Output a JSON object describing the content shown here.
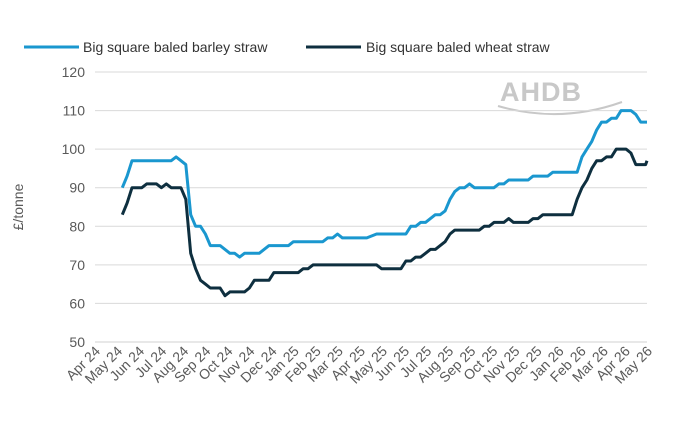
{
  "watermark": "AHDB",
  "colors": {
    "barley": "#1a97cf",
    "wheat": "#0e2f3f",
    "grid": "#d9d9d9",
    "axis": "#d0d0d0"
  },
  "chart_data": {
    "type": "line",
    "title": "",
    "xlabel": "",
    "ylabel": "£/tonne",
    "ylim": [
      50,
      120
    ],
    "yticks": [
      50,
      60,
      70,
      80,
      90,
      100,
      110,
      120
    ],
    "grid": true,
    "legend_position": "top",
    "x_range": [
      "2024-04-01",
      "2026-05-31"
    ],
    "categories": [
      "Apr 24",
      "May 24",
      "Jun 24",
      "Jul 24",
      "Aug 24",
      "Sep 24",
      "Oct 24",
      "Nov 24",
      "Dec 24",
      "Jan 25",
      "Feb 25",
      "Mar 25",
      "Apr 25",
      "May 25",
      "Jun 25",
      "Jul 25",
      "Aug 25",
      "Sep 25",
      "Oct 25",
      "Nov 25",
      "Dec 25",
      "Jan 26",
      "Feb 26",
      "Mar 26",
      "Apr 26",
      "May 26"
    ],
    "series": [
      {
        "name": "Big square baled barley straw",
        "color": "#1a97cf",
        "points": [
          [
            "2024-05-10",
            90
          ],
          [
            "2024-05-17",
            93
          ],
          [
            "2024-05-24",
            97
          ],
          [
            "2024-05-31",
            97
          ],
          [
            "2024-06-14",
            97
          ],
          [
            "2024-06-28",
            97
          ],
          [
            "2024-07-12",
            97
          ],
          [
            "2024-07-19",
            97
          ],
          [
            "2024-07-26",
            98
          ],
          [
            "2024-08-02",
            97
          ],
          [
            "2024-08-09",
            96
          ],
          [
            "2024-08-16",
            83
          ],
          [
            "2024-08-23",
            80
          ],
          [
            "2024-08-30",
            80
          ],
          [
            "2024-09-06",
            78
          ],
          [
            "2024-09-13",
            75
          ],
          [
            "2024-09-20",
            75
          ],
          [
            "2024-09-27",
            75
          ],
          [
            "2024-10-04",
            74
          ],
          [
            "2024-10-11",
            73
          ],
          [
            "2024-10-18",
            73
          ],
          [
            "2024-10-25",
            72
          ],
          [
            "2024-11-01",
            73
          ],
          [
            "2024-11-08",
            73
          ],
          [
            "2024-11-22",
            73
          ],
          [
            "2024-11-29",
            74
          ],
          [
            "2024-12-06",
            75
          ],
          [
            "2024-12-20",
            75
          ],
          [
            "2025-01-03",
            75
          ],
          [
            "2025-01-10",
            76
          ],
          [
            "2025-01-24",
            76
          ],
          [
            "2025-02-07",
            76
          ],
          [
            "2025-02-21",
            76
          ],
          [
            "2025-02-28",
            77
          ],
          [
            "2025-03-07",
            77
          ],
          [
            "2025-03-14",
            78
          ],
          [
            "2025-03-21",
            77
          ],
          [
            "2025-04-04",
            77
          ],
          [
            "2025-04-18",
            77
          ],
          [
            "2025-04-25",
            77
          ],
          [
            "2025-05-09",
            78
          ],
          [
            "2025-05-23",
            78
          ],
          [
            "2025-06-06",
            78
          ],
          [
            "2025-06-20",
            78
          ],
          [
            "2025-06-27",
            80
          ],
          [
            "2025-07-04",
            80
          ],
          [
            "2025-07-11",
            81
          ],
          [
            "2025-07-18",
            81
          ],
          [
            "2025-07-25",
            82
          ],
          [
            "2025-08-01",
            83
          ],
          [
            "2025-08-08",
            83
          ],
          [
            "2025-08-15",
            84
          ],
          [
            "2025-08-22",
            87
          ],
          [
            "2025-08-29",
            89
          ],
          [
            "2025-09-05",
            90
          ],
          [
            "2025-09-12",
            90
          ],
          [
            "2025-09-19",
            91
          ],
          [
            "2025-09-26",
            90
          ],
          [
            "2025-10-10",
            90
          ],
          [
            "2025-10-24",
            90
          ],
          [
            "2025-10-31",
            91
          ],
          [
            "2025-11-07",
            91
          ],
          [
            "2025-11-14",
            92
          ],
          [
            "2025-11-28",
            92
          ],
          [
            "2025-12-12",
            92
          ],
          [
            "2025-12-19",
            93
          ],
          [
            "2026-01-02",
            93
          ],
          [
            "2026-01-09",
            93
          ],
          [
            "2026-01-16",
            94
          ],
          [
            "2026-01-30",
            94
          ],
          [
            "2026-02-13",
            94
          ],
          [
            "2026-02-20",
            94
          ],
          [
            "2026-02-27",
            98
          ],
          [
            "2026-03-06",
            100
          ],
          [
            "2026-03-13",
            102
          ],
          [
            "2026-03-20",
            105
          ],
          [
            "2026-03-27",
            107
          ],
          [
            "2026-04-03",
            107
          ],
          [
            "2026-04-10",
            108
          ],
          [
            "2026-04-17",
            108
          ],
          [
            "2026-04-24",
            110
          ],
          [
            "2026-05-08",
            110
          ],
          [
            "2026-05-15",
            109
          ],
          [
            "2026-05-22",
            107
          ],
          [
            "2026-06-05",
            107
          ]
        ]
      },
      {
        "name": "Big square baled wheat straw",
        "color": "#0e2f3f",
        "points": [
          [
            "2024-05-10",
            83
          ],
          [
            "2024-05-17",
            86
          ],
          [
            "2024-05-24",
            90
          ],
          [
            "2024-05-31",
            90
          ],
          [
            "2024-06-07",
            90
          ],
          [
            "2024-06-14",
            91
          ],
          [
            "2024-06-21",
            91
          ],
          [
            "2024-06-28",
            91
          ],
          [
            "2024-07-05",
            90
          ],
          [
            "2024-07-12",
            91
          ],
          [
            "2024-07-19",
            90
          ],
          [
            "2024-07-26",
            90
          ],
          [
            "2024-08-02",
            90
          ],
          [
            "2024-08-09",
            87
          ],
          [
            "2024-08-16",
            73
          ],
          [
            "2024-08-23",
            69
          ],
          [
            "2024-08-30",
            66
          ],
          [
            "2024-09-06",
            65
          ],
          [
            "2024-09-13",
            64
          ],
          [
            "2024-09-20",
            64
          ],
          [
            "2024-09-27",
            64
          ],
          [
            "2024-10-04",
            62
          ],
          [
            "2024-10-11",
            63
          ],
          [
            "2024-10-18",
            63
          ],
          [
            "2024-10-25",
            63
          ],
          [
            "2024-11-01",
            63
          ],
          [
            "2024-11-08",
            64
          ],
          [
            "2024-11-15",
            66
          ],
          [
            "2024-11-22",
            66
          ],
          [
            "2024-11-29",
            66
          ],
          [
            "2024-12-06",
            66
          ],
          [
            "2024-12-13",
            68
          ],
          [
            "2024-12-20",
            68
          ],
          [
            "2025-01-03",
            68
          ],
          [
            "2025-01-17",
            68
          ],
          [
            "2025-01-24",
            69
          ],
          [
            "2025-01-31",
            69
          ],
          [
            "2025-02-07",
            70
          ],
          [
            "2025-02-21",
            70
          ],
          [
            "2025-03-07",
            70
          ],
          [
            "2025-03-21",
            70
          ],
          [
            "2025-04-04",
            70
          ],
          [
            "2025-04-18",
            70
          ],
          [
            "2025-05-02",
            70
          ],
          [
            "2025-05-09",
            70
          ],
          [
            "2025-05-16",
            69
          ],
          [
            "2025-05-30",
            69
          ],
          [
            "2025-06-13",
            69
          ],
          [
            "2025-06-20",
            71
          ],
          [
            "2025-06-27",
            71
          ],
          [
            "2025-07-04",
            72
          ],
          [
            "2025-07-11",
            72
          ],
          [
            "2025-07-18",
            73
          ],
          [
            "2025-07-25",
            74
          ],
          [
            "2025-08-01",
            74
          ],
          [
            "2025-08-08",
            75
          ],
          [
            "2025-08-15",
            76
          ],
          [
            "2025-08-22",
            78
          ],
          [
            "2025-08-29",
            79
          ],
          [
            "2025-09-05",
            79
          ],
          [
            "2025-09-19",
            79
          ],
          [
            "2025-10-03",
            79
          ],
          [
            "2025-10-10",
            80
          ],
          [
            "2025-10-17",
            80
          ],
          [
            "2025-10-24",
            81
          ],
          [
            "2025-11-07",
            81
          ],
          [
            "2025-11-14",
            82
          ],
          [
            "2025-11-21",
            81
          ],
          [
            "2025-11-28",
            81
          ],
          [
            "2025-12-12",
            81
          ],
          [
            "2025-12-19",
            82
          ],
          [
            "2025-12-26",
            82
          ],
          [
            "2026-01-02",
            83
          ],
          [
            "2026-01-16",
            83
          ],
          [
            "2026-01-30",
            83
          ],
          [
            "2026-02-06",
            83
          ],
          [
            "2026-02-13",
            83
          ],
          [
            "2026-02-20",
            87
          ],
          [
            "2026-02-27",
            90
          ],
          [
            "2026-03-06",
            92
          ],
          [
            "2026-03-13",
            95
          ],
          [
            "2026-03-20",
            97
          ],
          [
            "2026-03-27",
            97
          ],
          [
            "2026-04-03",
            98
          ],
          [
            "2026-04-10",
            98
          ],
          [
            "2026-04-17",
            100
          ],
          [
            "2026-05-01",
            100
          ],
          [
            "2026-05-08",
            99
          ],
          [
            "2026-05-15",
            96
          ],
          [
            "2026-05-22",
            96
          ],
          [
            "2026-05-29",
            96
          ],
          [
            "2026-06-05",
            97
          ]
        ]
      }
    ]
  }
}
